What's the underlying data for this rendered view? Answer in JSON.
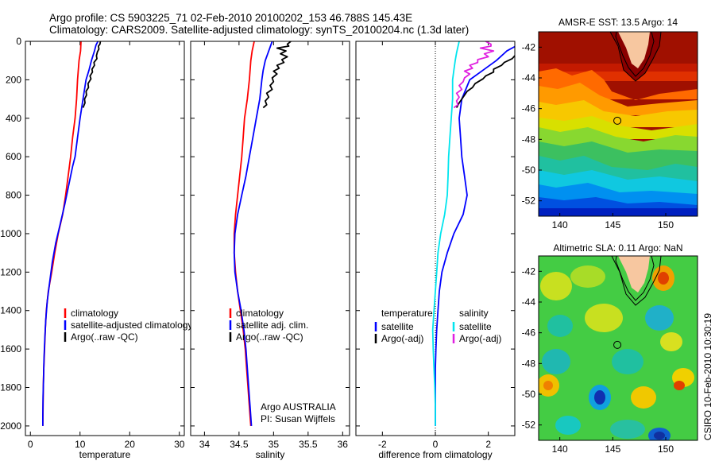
{
  "header": {
    "line1": "Argo profile: CS 5903225_71 02-Feb-2010 20100202_153 46.788S 145.43E",
    "line2": "Climatology: CARS2009. Satellite-adjusted climatology: synTS_20100204.nc (1.3d later)"
  },
  "side_stamp": "CSIRO 10-Feb-2010 10:30:19",
  "colors": {
    "climatology": "#ff0000",
    "satellite": "#0000ff",
    "argo": "#000000",
    "salinity_satellite": "#00e5ee",
    "salinity_argo": "#e020e0",
    "land": "#f7c7a0"
  },
  "chart_data": [
    {
      "type": "line",
      "id": "temperature",
      "xlabel": "temperature",
      "xlim": [
        -1,
        31
      ],
      "ylim": [
        2050,
        0
      ],
      "xticks": [
        0,
        10,
        20,
        30
      ],
      "yticks": [
        0,
        200,
        400,
        600,
        800,
        1000,
        1200,
        1400,
        1600,
        1800,
        2000
      ],
      "series": [
        {
          "name": "climatology",
          "color": "#ff0000",
          "points": [
            [
              10.2,
              0
            ],
            [
              10.1,
              50
            ],
            [
              9.8,
              100
            ],
            [
              9.5,
              200
            ],
            [
              9.3,
              300
            ],
            [
              9.0,
              400
            ],
            [
              8.5,
              500
            ],
            [
              8.1,
              600
            ],
            [
              7.6,
              700
            ],
            [
              7.1,
              800
            ],
            [
              6.5,
              900
            ],
            [
              5.6,
              1000
            ],
            [
              4.9,
              1100
            ],
            [
              4.3,
              1200
            ],
            [
              3.6,
              1300
            ],
            [
              3.2,
              1400
            ],
            [
              3.0,
              1500
            ],
            [
              2.85,
              1600
            ],
            [
              2.7,
              1700
            ],
            [
              2.6,
              1800
            ],
            [
              2.55,
              1900
            ],
            [
              2.5,
              2000
            ]
          ]
        },
        {
          "name": "satellite-adjusted climatology",
          "color": "#0000ff",
          "points": [
            [
              13.6,
              0
            ],
            [
              13.2,
              20
            ],
            [
              12.9,
              50
            ],
            [
              12.3,
              100
            ],
            [
              11.8,
              150
            ],
            [
              11.2,
              200
            ],
            [
              10.6,
              300
            ],
            [
              10.0,
              400
            ],
            [
              9.5,
              500
            ],
            [
              9.0,
              600
            ],
            [
              8.5,
              650
            ],
            [
              7.7,
              750
            ],
            [
              6.9,
              850
            ],
            [
              6.0,
              950
            ],
            [
              5.1,
              1050
            ],
            [
              4.4,
              1150
            ],
            [
              3.9,
              1250
            ],
            [
              3.4,
              1350
            ],
            [
              3.1,
              1450
            ],
            [
              2.9,
              1550
            ],
            [
              2.75,
              1650
            ],
            [
              2.65,
              1750
            ],
            [
              2.55,
              1850
            ],
            [
              2.5,
              1950
            ],
            [
              2.5,
              2000
            ]
          ]
        },
        {
          "name": "Argo(..raw -QC)",
          "color": "#000000",
          "points": [
            [
              14.1,
              0
            ],
            [
              14.0,
              15
            ],
            [
              13.7,
              25
            ],
            [
              13.8,
              40
            ],
            [
              13.5,
              55
            ],
            [
              13.3,
              75
            ],
            [
              13.4,
              90
            ],
            [
              12.8,
              110
            ],
            [
              12.9,
              125
            ],
            [
              12.4,
              145
            ],
            [
              12.5,
              160
            ],
            [
              12.0,
              180
            ],
            [
              12.2,
              195
            ],
            [
              11.6,
              220
            ],
            [
              11.7,
              240
            ],
            [
              11.2,
              260
            ],
            [
              11.3,
              280
            ],
            [
              10.9,
              300
            ],
            [
              11.0,
              320
            ],
            [
              10.6,
              345
            ]
          ]
        }
      ]
    },
    {
      "type": "line",
      "id": "salinity",
      "xlabel": "salinity",
      "xlim": [
        33.8,
        36.1
      ],
      "ylim": [
        2050,
        0
      ],
      "xticks": [
        34,
        34.5,
        35,
        35.5,
        36
      ],
      "xticklabels": [
        "34",
        "34.5",
        "35",
        "35.5",
        "36"
      ],
      "series": [
        {
          "name": "climatology",
          "color": "#ff0000",
          "points": [
            [
              34.72,
              0
            ],
            [
              34.69,
              50
            ],
            [
              34.67,
              100
            ],
            [
              34.65,
              200
            ],
            [
              34.62,
              300
            ],
            [
              34.58,
              400
            ],
            [
              34.56,
              500
            ],
            [
              34.54,
              600
            ],
            [
              34.51,
              700
            ],
            [
              34.48,
              800
            ],
            [
              34.45,
              900
            ],
            [
              34.43,
              1000
            ],
            [
              34.43,
              1100
            ],
            [
              34.45,
              1200
            ],
            [
              34.48,
              1300
            ],
            [
              34.52,
              1400
            ],
            [
              34.56,
              1500
            ],
            [
              34.59,
              1600
            ],
            [
              34.61,
              1700
            ],
            [
              34.63,
              1800
            ],
            [
              34.65,
              1900
            ],
            [
              34.67,
              2000
            ]
          ]
        },
        {
          "name": "satellite adj. clim.",
          "color": "#0000ff",
          "points": [
            [
              34.98,
              0
            ],
            [
              34.95,
              30
            ],
            [
              34.92,
              60
            ],
            [
              34.88,
              100
            ],
            [
              34.85,
              150
            ],
            [
              34.83,
              200
            ],
            [
              34.8,
              300
            ],
            [
              34.75,
              400
            ],
            [
              34.7,
              500
            ],
            [
              34.65,
              600
            ],
            [
              34.6,
              700
            ],
            [
              34.54,
              800
            ],
            [
              34.48,
              900
            ],
            [
              34.44,
              1000
            ],
            [
              34.43,
              1100
            ],
            [
              34.44,
              1200
            ],
            [
              34.48,
              1300
            ],
            [
              34.53,
              1400
            ],
            [
              34.57,
              1500
            ],
            [
              34.6,
              1600
            ],
            [
              34.62,
              1700
            ],
            [
              34.64,
              1800
            ],
            [
              34.66,
              1900
            ],
            [
              34.68,
              2000
            ]
          ]
        },
        {
          "name": "Argo(..raw -QC)",
          "color": "#000000",
          "points": [
            [
              35.25,
              0
            ],
            [
              35.2,
              15
            ],
            [
              35.22,
              25
            ],
            [
              35.05,
              35
            ],
            [
              35.18,
              50
            ],
            [
              35.1,
              65
            ],
            [
              35.2,
              80
            ],
            [
              35.12,
              95
            ],
            [
              35.15,
              110
            ],
            [
              35.05,
              125
            ],
            [
              35.08,
              140
            ],
            [
              35.0,
              155
            ],
            [
              35.05,
              170
            ],
            [
              34.98,
              190
            ],
            [
              35.0,
              210
            ],
            [
              34.95,
              230
            ],
            [
              34.98,
              250
            ],
            [
              34.9,
              270
            ],
            [
              34.93,
              290
            ],
            [
              34.88,
              310
            ],
            [
              34.9,
              330
            ],
            [
              34.85,
              345
            ]
          ]
        }
      ],
      "annotation": {
        "line1": "Argo AUSTRALIA",
        "line2": "PI: Susan Wijffels"
      }
    },
    {
      "type": "line",
      "id": "difference",
      "xlabel": "difference from climatology",
      "xlim": [
        -3,
        3
      ],
      "ylim": [
        2050,
        0
      ],
      "xticks": [
        -2,
        0,
        2
      ],
      "xticklabels": [
        "-2",
        "0",
        "2"
      ],
      "zero_line": true,
      "legend_headers": [
        "temperature",
        "salinity"
      ],
      "series": [
        {
          "name": "satellite",
          "group": "temperature",
          "color": "#0000ff",
          "points": [
            [
              3.4,
              0
            ],
            [
              3.1,
              20
            ],
            [
              2.7,
              50
            ],
            [
              2.3,
              100
            ],
            [
              1.8,
              150
            ],
            [
              1.3,
              200
            ],
            [
              1.0,
              300
            ],
            [
              0.9,
              400
            ],
            [
              0.95,
              500
            ],
            [
              1.0,
              600
            ],
            [
              1.1,
              700
            ],
            [
              1.2,
              800
            ],
            [
              1.05,
              900
            ],
            [
              0.7,
              1000
            ],
            [
              0.45,
              1100
            ],
            [
              0.25,
              1200
            ],
            [
              0.15,
              1300
            ],
            [
              0.1,
              1400
            ],
            [
              0.05,
              1500
            ],
            [
              0.02,
              1600
            ],
            [
              0.0,
              1700
            ],
            [
              0.0,
              1800
            ],
            [
              0.0,
              1900
            ],
            [
              0.0,
              2000
            ]
          ]
        },
        {
          "name": "Argo(-adj)",
          "group": "temperature",
          "color": "#000000",
          "points": [
            [
              3.9,
              0
            ],
            [
              3.7,
              15
            ],
            [
              3.5,
              25
            ],
            [
              3.4,
              45
            ],
            [
              3.2,
              55
            ],
            [
              3.0,
              75
            ],
            [
              2.9,
              90
            ],
            [
              2.6,
              110
            ],
            [
              2.5,
              125
            ],
            [
              2.2,
              145
            ],
            [
              2.2,
              160
            ],
            [
              1.9,
              180
            ],
            [
              1.8,
              195
            ],
            [
              1.5,
              220
            ],
            [
              1.4,
              240
            ],
            [
              1.2,
              260
            ],
            [
              1.1,
              280
            ],
            [
              1.0,
              300
            ],
            [
              0.9,
              320
            ],
            [
              0.8,
              345
            ]
          ]
        },
        {
          "name": "satellite",
          "group": "salinity",
          "color": "#00e5ee",
          "points": [
            [
              0.9,
              0
            ],
            [
              0.85,
              30
            ],
            [
              0.8,
              60
            ],
            [
              0.75,
              100
            ],
            [
              0.7,
              150
            ],
            [
              0.65,
              200
            ],
            [
              0.65,
              300
            ],
            [
              0.6,
              400
            ],
            [
              0.55,
              500
            ],
            [
              0.5,
              600
            ],
            [
              0.48,
              700
            ],
            [
              0.45,
              800
            ],
            [
              0.35,
              900
            ],
            [
              0.2,
              1000
            ],
            [
              0.1,
              1100
            ],
            [
              0.05,
              1200
            ],
            [
              0.0,
              1300
            ],
            [
              -0.05,
              1400
            ],
            [
              -0.1,
              1500
            ],
            [
              -0.08,
              1600
            ],
            [
              -0.05,
              1700
            ],
            [
              -0.02,
              1800
            ],
            [
              0.0,
              1900
            ],
            [
              0.0,
              2000
            ]
          ]
        },
        {
          "name": "Argo(-adj)",
          "group": "salinity",
          "color": "#e020e0",
          "points": [
            [
              1.9,
              0
            ],
            [
              2.1,
              15
            ],
            [
              2.1,
              25
            ],
            [
              1.7,
              35
            ],
            [
              2.2,
              50
            ],
            [
              1.85,
              65
            ],
            [
              2.0,
              80
            ],
            [
              1.6,
              95
            ],
            [
              1.6,
              110
            ],
            [
              1.3,
              125
            ],
            [
              1.4,
              140
            ],
            [
              1.1,
              155
            ],
            [
              1.3,
              170
            ],
            [
              1.1,
              190
            ],
            [
              1.05,
              210
            ],
            [
              0.9,
              230
            ],
            [
              1.0,
              250
            ],
            [
              0.8,
              270
            ],
            [
              0.9,
              290
            ],
            [
              0.8,
              310
            ],
            [
              0.85,
              330
            ],
            [
              0.7,
              345
            ]
          ]
        }
      ]
    },
    {
      "type": "heatmap",
      "id": "sst-map",
      "title": "AMSR-E SST: 13.5 Argo: 14",
      "xlim": [
        138,
        153
      ],
      "ylim": [
        -53,
        -41
      ],
      "xticks": [
        140,
        145,
        150
      ],
      "yticks": [
        -42,
        -44,
        -46,
        -48,
        -50,
        -52
      ],
      "argo_position": [
        145.43,
        -46.788
      ]
    },
    {
      "type": "heatmap",
      "id": "sla-map",
      "title": "Altimetric SLA: 0.11 Argo: NaN",
      "xlim": [
        138,
        153
      ],
      "ylim": [
        -53,
        -41
      ],
      "xticks": [
        140,
        145,
        150
      ],
      "yticks": [
        -42,
        -44,
        -46,
        -48,
        -50,
        -52
      ],
      "argo_position": [
        145.43,
        -46.788
      ]
    }
  ]
}
